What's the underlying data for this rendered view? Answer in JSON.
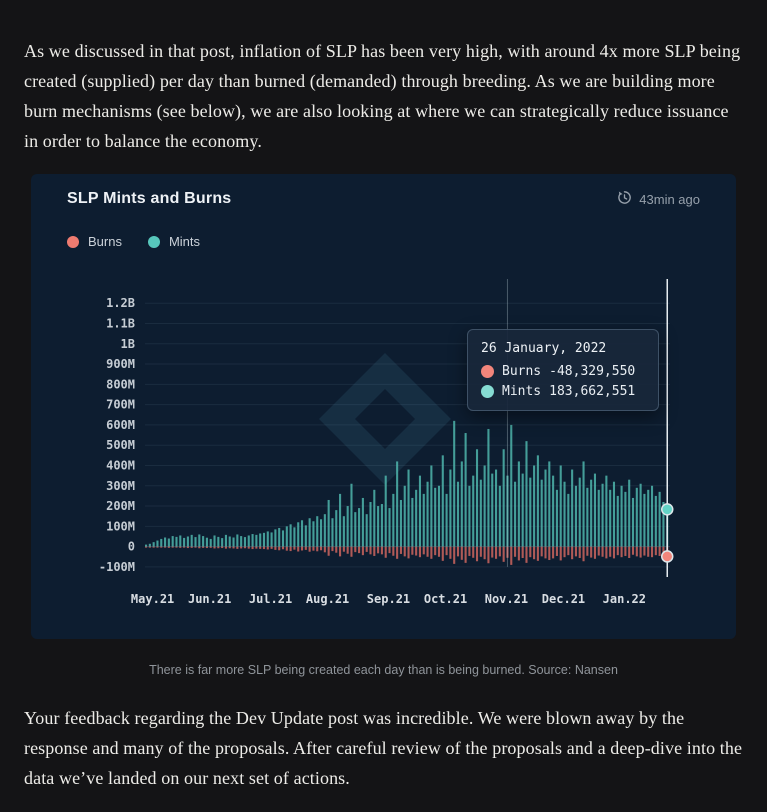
{
  "paragraphs": {
    "p1": "As we discussed in that post, inflation of SLP has been very high, with around 4x more SLP being created (supplied) per day than burned (demanded) through breeding.  As we are building more burn mechanisms (see below), we are also looking at where we can strategically reduce issuance in order to balance the economy.",
    "p2": "Your feedback regarding the Dev Update post was incredible.  We were blown away by the response and many of the proposals. After careful review of the proposals and a deep-dive into the data we’ve landed on our next set of actions."
  },
  "chart_card": {
    "title": "SLP Mints and Burns",
    "updated": "43min ago",
    "legend": [
      {
        "label": "Burns",
        "color": "#ee7b70"
      },
      {
        "label": "Mints",
        "color": "#57c7bc"
      }
    ],
    "tooltip": {
      "date": "26 January, 2022",
      "rows": [
        {
          "label": "Burns",
          "value": "-48,329,550",
          "color": "#f2857b"
        },
        {
          "label": "Mints",
          "value": "183,662,551",
          "color": "#86dcd3"
        }
      ]
    }
  },
  "figure": {
    "caption": "There is far more SLP being created each day than is being burned. Source: Nansen"
  },
  "chart_data": {
    "type": "bar",
    "title": "SLP Mints and Burns",
    "unit": "million SLP per day",
    "ylim": [
      -130,
      1270
    ],
    "grid": "horizontal",
    "legend_position": "top-left",
    "y_ticks": [
      {
        "label": "1.2B",
        "value": 1200
      },
      {
        "label": "1.1B",
        "value": 1100
      },
      {
        "label": "1B",
        "value": 1000
      },
      {
        "label": "900M",
        "value": 900
      },
      {
        "label": "800M",
        "value": 800
      },
      {
        "label": "700M",
        "value": 700
      },
      {
        "label": "600M",
        "value": 600
      },
      {
        "label": "500M",
        "value": 500
      },
      {
        "label": "400M",
        "value": 400
      },
      {
        "label": "300M",
        "value": 300
      },
      {
        "label": "200M",
        "value": 200
      },
      {
        "label": "100M",
        "value": 100
      },
      {
        "label": "0",
        "value": 0
      },
      {
        "label": "-100M",
        "value": -100
      }
    ],
    "x_tick_labels": [
      "May.21",
      "Jun.21",
      "Jul.21",
      "Aug.21",
      "Sep.21",
      "Oct.21",
      "Nov.21",
      "Dec.21",
      "Jan.22"
    ],
    "x_tick_indices": [
      2,
      17,
      33,
      48,
      64,
      79,
      95,
      110,
      126
    ],
    "crosshair_index": 95,
    "selected_index": 137,
    "selected_point": {
      "date": "26 January, 2022",
      "mints": 183662551,
      "burns": -48329550
    },
    "series": [
      {
        "name": "Mints",
        "color": "#4fb5ab",
        "values": [
          10,
          14,
          22,
          30,
          38,
          45,
          40,
          52,
          48,
          55,
          43,
          50,
          58,
          47,
          60,
          52,
          44,
          38,
          55,
          48,
          42,
          58,
          50,
          45,
          60,
          52,
          47,
          55,
          62,
          58,
          65,
          68,
          75,
          70,
          85,
          92,
          80,
          100,
          110,
          95,
          120,
          130,
          105,
          140,
          125,
          150,
          135,
          160,
          230,
          140,
          180,
          260,
          150,
          200,
          310,
          170,
          190,
          240,
          160,
          220,
          280,
          200,
          210,
          350,
          190,
          260,
          420,
          230,
          300,
          380,
          240,
          280,
          350,
          260,
          320,
          400,
          290,
          300,
          450,
          260,
          380,
          620,
          320,
          420,
          560,
          300,
          350,
          480,
          330,
          400,
          580,
          360,
          380,
          300,
          480,
          350,
          600,
          320,
          420,
          360,
          520,
          340,
          400,
          450,
          330,
          380,
          420,
          350,
          280,
          400,
          320,
          260,
          380,
          300,
          340,
          420,
          290,
          330,
          360,
          280,
          310,
          350,
          280,
          320,
          250,
          300,
          270,
          330,
          240,
          290,
          310,
          260,
          280,
          300,
          250,
          270,
          220,
          183.66
        ]
      },
      {
        "name": "Burns",
        "color": "#d96a62",
        "values": [
          -3,
          -2,
          -4,
          -3,
          -5,
          -4,
          -6,
          -5,
          -4,
          -6,
          -5,
          -7,
          -6,
          -5,
          -8,
          -6,
          -7,
          -6,
          -9,
          -8,
          -7,
          -10,
          -8,
          -9,
          -11,
          -9,
          -8,
          -10,
          -12,
          -10,
          -11,
          -12,
          -14,
          -11,
          -16,
          -18,
          -13,
          -20,
          -22,
          -15,
          -24,
          -19,
          -16,
          -25,
          -20,
          -23,
          -18,
          -28,
          -45,
          -22,
          -30,
          -48,
          -25,
          -35,
          -50,
          -27,
          -32,
          -42,
          -26,
          -38,
          -46,
          -33,
          -38,
          -55,
          -32,
          -45,
          -60,
          -36,
          -48,
          -58,
          -40,
          -44,
          -52,
          -38,
          -50,
          -60,
          -42,
          -50,
          -70,
          -42,
          -60,
          -85,
          -48,
          -65,
          -80,
          -46,
          -55,
          -72,
          -50,
          -62,
          -82,
          -54,
          -60,
          -48,
          -75,
          -55,
          -90,
          -50,
          -68,
          -56,
          -80,
          -52,
          -62,
          -70,
          -48,
          -58,
          -66,
          -58,
          -46,
          -68,
          -52,
          -42,
          -62,
          -48,
          -56,
          -72,
          -45,
          -54,
          -60,
          -44,
          -50,
          -58,
          -50,
          -58,
          -42,
          -52,
          -46,
          -56,
          -40,
          -48,
          -54,
          -44,
          -50,
          -52,
          -42,
          -46,
          -38,
          -48.33
        ]
      }
    ]
  }
}
